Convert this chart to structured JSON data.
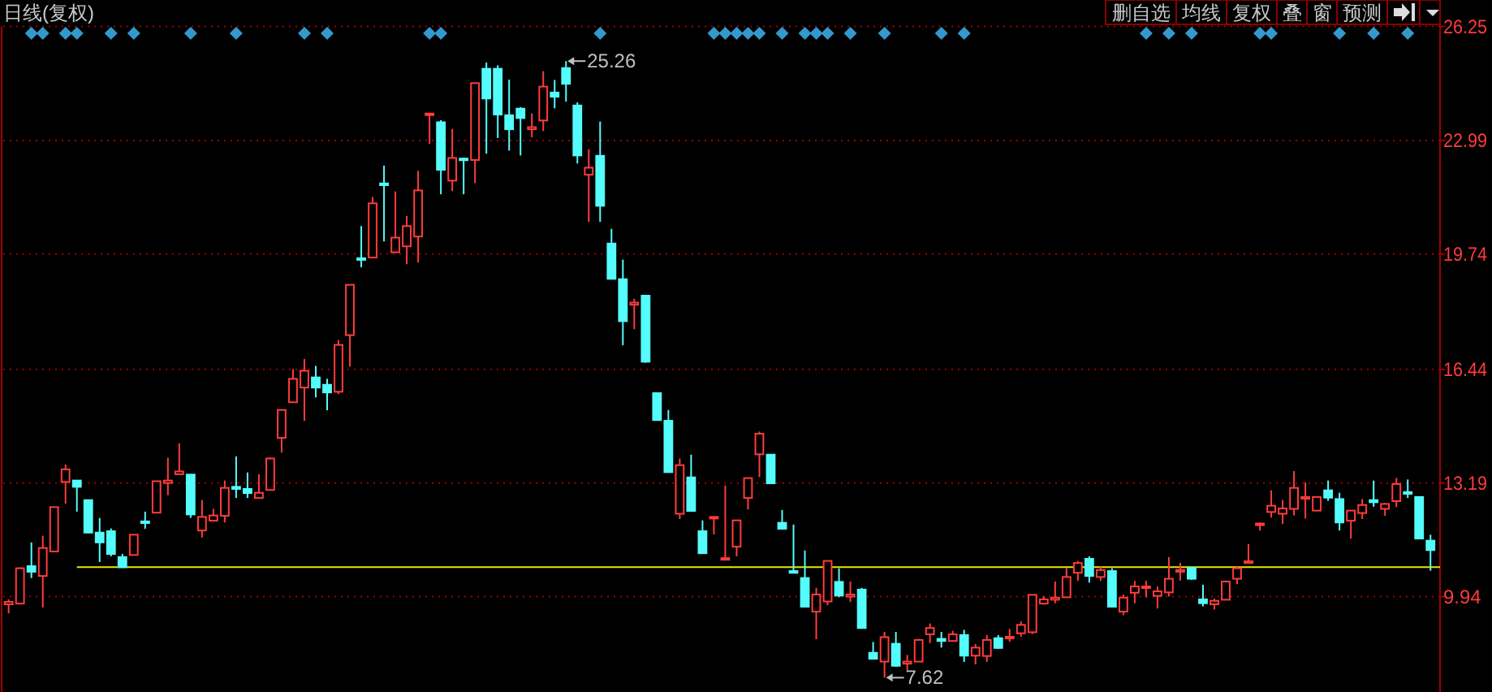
{
  "chart_data": {
    "type": "candlestick",
    "title": "日线(复权)",
    "annotations": [
      "删自选",
      "均线",
      "复权",
      "叠",
      "窗",
      "预测",
      "25.26",
      "7.62"
    ],
    "categories": [
      null,
      null,
      null,
      null,
      null,
      null,
      null,
      null,
      null,
      null,
      null,
      null,
      null,
      null,
      null,
      null,
      null,
      null,
      null,
      null,
      null,
      null,
      null,
      null,
      null,
      null,
      null,
      null,
      null,
      null,
      null,
      null,
      null,
      null,
      null,
      null,
      null,
      null,
      null,
      null,
      null,
      null,
      null,
      null,
      null,
      null,
      null,
      null,
      null,
      null,
      null,
      null,
      null,
      null,
      null,
      null,
      null,
      null,
      null,
      null,
      null,
      null,
      null,
      null,
      null,
      null,
      null,
      null,
      null,
      null,
      null,
      null,
      null,
      null,
      null,
      null,
      null,
      null,
      null,
      null,
      null,
      null,
      null,
      null,
      null,
      null,
      null,
      null,
      null,
      null,
      null,
      null,
      null,
      null,
      null,
      null,
      null,
      null,
      null,
      null,
      null,
      null,
      null,
      null,
      null,
      null,
      null,
      null,
      null,
      null,
      null,
      null,
      null,
      null,
      null,
      null,
      null,
      null,
      null,
      null,
      null,
      null,
      null,
      null,
      null,
      null
    ],
    "ohlc": [
      [
        9.72,
        9.86,
        9.46,
        9.79
      ],
      [
        9.74,
        10.78,
        9.72,
        10.75
      ],
      [
        10.81,
        11.49,
        10.47,
        10.65
      ],
      [
        10.53,
        11.68,
        9.63,
        11.33
      ],
      [
        11.23,
        12.5,
        11.23,
        12.5
      ],
      [
        13.22,
        13.72,
        12.6,
        13.58
      ],
      [
        13.26,
        13.26,
        12.37,
        13.08
      ],
      [
        12.7,
        12.7,
        11.77,
        11.77
      ],
      [
        11.77,
        12.19,
        10.93,
        11.49
      ],
      [
        11.81,
        11.89,
        11.09,
        11.16
      ],
      [
        11.07,
        11.16,
        10.78,
        10.78
      ],
      [
        11.13,
        11.71,
        11.13,
        11.71
      ],
      [
        12.09,
        12.37,
        11.88,
        12.05
      ],
      [
        12.34,
        13.24,
        12.34,
        13.24
      ],
      [
        13.19,
        13.91,
        12.84,
        13.26
      ],
      [
        13.44,
        14.32,
        13.44,
        13.52
      ],
      [
        13.43,
        13.43,
        12.19,
        12.29
      ],
      [
        11.83,
        12.7,
        11.63,
        12.22
      ],
      [
        12.11,
        12.45,
        12.11,
        12.26
      ],
      [
        12.25,
        13.26,
        12.06,
        13.05
      ],
      [
        13.08,
        13.95,
        12.76,
        13.02
      ],
      [
        13.02,
        13.49,
        12.76,
        12.9
      ],
      [
        12.76,
        13.44,
        12.76,
        12.91
      ],
      [
        12.99,
        13.92,
        12.99,
        13.89
      ],
      [
        14.48,
        15.28,
        14.06,
        15.28
      ],
      [
        15.5,
        16.45,
        15.5,
        16.17
      ],
      [
        15.92,
        16.74,
        14.97,
        16.4
      ],
      [
        16.21,
        16.54,
        15.64,
        15.92
      ],
      [
        16.0,
        16.17,
        15.27,
        15.78
      ],
      [
        15.8,
        17.28,
        15.73,
        17.14
      ],
      [
        17.42,
        18.86,
        16.52,
        18.86
      ],
      [
        19.62,
        20.54,
        19.36,
        19.58
      ],
      [
        19.64,
        21.37,
        19.64,
        21.19
      ],
      [
        21.76,
        22.27,
        20.1,
        21.71
      ],
      [
        19.79,
        21.53,
        19.79,
        20.21
      ],
      [
        19.96,
        20.83,
        19.45,
        20.54
      ],
      [
        20.24,
        22.12,
        19.5,
        21.56
      ],
      [
        23.73,
        23.76,
        22.89,
        23.76
      ],
      [
        23.51,
        23.57,
        21.45,
        22.15
      ],
      [
        21.84,
        23.32,
        21.54,
        22.49
      ],
      [
        22.47,
        22.5,
        21.45,
        22.43
      ],
      [
        22.43,
        24.63,
        21.77,
        24.63
      ],
      [
        25.04,
        25.22,
        22.61,
        24.19
      ],
      [
        25.04,
        25.14,
        23.06,
        23.73
      ],
      [
        23.71,
        24.73,
        22.7,
        23.31
      ],
      [
        23.9,
        23.94,
        22.56,
        23.63
      ],
      [
        23.31,
        23.76,
        23.08,
        23.37
      ],
      [
        23.56,
        24.97,
        23.26,
        24.53
      ],
      [
        24.36,
        24.72,
        23.91,
        24.24
      ],
      [
        25.06,
        25.26,
        24.1,
        24.61
      ],
      [
        23.99,
        24.08,
        22.33,
        22.56
      ],
      [
        22.01,
        22.74,
        20.66,
        22.21
      ],
      [
        22.55,
        23.53,
        20.66,
        21.12
      ],
      [
        20.04,
        20.46,
        19.03,
        19.03
      ],
      [
        19.02,
        19.58,
        17.13,
        17.82
      ],
      [
        18.29,
        18.46,
        17.59,
        18.35
      ],
      [
        18.55,
        18.55,
        16.63,
        16.66
      ],
      [
        15.76,
        15.76,
        14.99,
        14.99
      ],
      [
        14.97,
        15.28,
        13.5,
        13.5
      ],
      [
        12.31,
        13.89,
        12.16,
        13.7
      ],
      [
        13.35,
        14.0,
        12.39,
        12.39
      ],
      [
        11.81,
        12.12,
        11.18,
        11.18
      ],
      [
        12.19,
        12.22,
        11.72,
        12.22
      ],
      [
        11.01,
        13.12,
        11.01,
        11.04
      ],
      [
        11.37,
        12.12,
        11.09,
        12.12
      ],
      [
        12.76,
        13.33,
        12.43,
        13.33
      ],
      [
        14.01,
        14.66,
        13.36,
        14.6
      ],
      [
        14.0,
        14.0,
        13.18,
        13.18
      ],
      [
        12.05,
        12.42,
        11.88,
        11.88
      ],
      [
        10.67,
        12.0,
        10.62,
        10.62
      ],
      [
        10.47,
        11.26,
        9.65,
        9.65
      ],
      [
        9.51,
        10.19,
        8.72,
        10.0
      ],
      [
        9.8,
        10.96,
        9.69,
        10.96
      ],
      [
        10.36,
        10.75,
        9.92,
        9.97
      ],
      [
        9.94,
        10.37,
        9.79,
        10.0
      ],
      [
        10.14,
        10.19,
        9.04,
        9.04
      ],
      [
        8.33,
        8.64,
        8.16,
        8.16
      ],
      [
        8.08,
        8.93,
        7.62,
        8.78
      ],
      [
        8.59,
        8.93,
        7.93,
        7.96
      ],
      [
        8.02,
        8.27,
        7.83,
        8.08
      ],
      [
        8.08,
        8.73,
        8.08,
        8.7
      ],
      [
        8.86,
        9.17,
        8.61,
        9.04
      ],
      [
        8.73,
        8.93,
        8.48,
        8.67
      ],
      [
        8.67,
        8.96,
        8.67,
        8.86
      ],
      [
        8.84,
        8.99,
        8.07,
        8.25
      ],
      [
        8.25,
        8.58,
        8.0,
        8.48
      ],
      [
        8.24,
        8.84,
        8.07,
        8.7
      ],
      [
        8.75,
        8.84,
        8.44,
        8.47
      ],
      [
        8.75,
        9.01,
        8.65,
        8.79
      ],
      [
        8.89,
        9.23,
        8.79,
        9.13
      ],
      [
        8.92,
        9.99,
        8.87,
        9.99
      ],
      [
        9.74,
        9.95,
        9.71,
        9.86
      ],
      [
        9.85,
        10.37,
        9.75,
        9.91
      ],
      [
        9.92,
        10.76,
        9.92,
        10.5
      ],
      [
        10.62,
        10.96,
        10.39,
        10.9
      ],
      [
        11.02,
        11.09,
        10.34,
        10.53
      ],
      [
        10.5,
        10.79,
        10.39,
        10.7
      ],
      [
        10.67,
        10.75,
        9.65,
        9.65
      ],
      [
        9.51,
        10.0,
        9.41,
        9.91
      ],
      [
        10.05,
        10.39,
        9.75,
        10.23
      ],
      [
        10.19,
        10.39,
        9.92,
        10.23
      ],
      [
        9.96,
        10.23,
        9.6,
        10.09
      ],
      [
        10.06,
        11.07,
        9.94,
        10.45
      ],
      [
        10.65,
        10.9,
        10.4,
        10.7
      ],
      [
        10.76,
        10.79,
        10.42,
        10.45
      ],
      [
        9.86,
        10.28,
        9.66,
        9.75
      ],
      [
        9.72,
        9.88,
        9.57,
        9.82
      ],
      [
        9.85,
        10.4,
        9.85,
        10.37
      ],
      [
        10.45,
        10.79,
        10.3,
        10.75
      ],
      [
        10.9,
        11.44,
        10.9,
        10.95
      ],
      [
        12.0,
        12.06,
        11.83,
        12.03
      ],
      [
        12.36,
        12.98,
        12.2,
        12.54
      ],
      [
        12.31,
        12.7,
        12.02,
        12.46
      ],
      [
        12.45,
        13.53,
        12.26,
        13.05
      ],
      [
        12.74,
        13.21,
        12.17,
        12.79
      ],
      [
        12.4,
        12.79,
        12.4,
        12.79
      ],
      [
        12.98,
        13.26,
        12.68,
        12.77
      ],
      [
        12.73,
        12.91,
        11.83,
        12.06
      ],
      [
        12.11,
        12.4,
        11.6,
        12.4
      ],
      [
        12.33,
        12.73,
        12.16,
        12.56
      ],
      [
        12.7,
        13.26,
        12.51,
        12.64
      ],
      [
        12.45,
        12.62,
        12.25,
        12.59
      ],
      [
        12.67,
        13.33,
        12.5,
        13.16
      ],
      [
        12.93,
        13.29,
        12.76,
        12.88
      ],
      [
        12.79,
        12.79,
        11.6,
        11.6
      ],
      [
        11.54,
        11.71,
        10.68,
        11.27
      ]
    ],
    "colors": [
      "#ff3c3c",
      "#ff3c3c",
      "#54fcfc",
      "#ff3c3c",
      "#ff3c3c",
      "#ff3c3c",
      "#54fcfc",
      "#54fcfc",
      "#54fcfc",
      "#54fcfc",
      "#54fcfc",
      "#ff3c3c",
      "#54fcfc",
      "#ff3c3c",
      "#ff3c3c",
      "#ff3c3c",
      "#54fcfc",
      "#ff3c3c",
      "#ff3c3c",
      "#ff3c3c",
      "#54fcfc",
      "#54fcfc",
      "#ff3c3c",
      "#ff3c3c",
      "#ff3c3c",
      "#ff3c3c",
      "#ff3c3c",
      "#54fcfc",
      "#54fcfc",
      "#ff3c3c",
      "#ff3c3c",
      "#54fcfc",
      "#ff3c3c",
      "#54fcfc",
      "#ff3c3c",
      "#ff3c3c",
      "#ff3c3c",
      "#ff3c3c",
      "#54fcfc",
      "#ff3c3c",
      "#54fcfc",
      "#ff3c3c",
      "#54fcfc",
      "#54fcfc",
      "#54fcfc",
      "#54fcfc",
      "#ff3c3c",
      "#ff3c3c",
      "#54fcfc",
      "#54fcfc",
      "#54fcfc",
      "#ff3c3c",
      "#54fcfc",
      "#54fcfc",
      "#54fcfc",
      "#ff3c3c",
      "#54fcfc",
      "#54fcfc",
      "#54fcfc",
      "#ff3c3c",
      "#54fcfc",
      "#54fcfc",
      "#ff3c3c",
      "#ff3c3c",
      "#ff3c3c",
      "#ff3c3c",
      "#ff3c3c",
      "#54fcfc",
      "#54fcfc",
      "#54fcfc",
      "#54fcfc",
      "#ff3c3c",
      "#ff3c3c",
      "#54fcfc",
      "#ff3c3c",
      "#54fcfc",
      "#54fcfc",
      "#ff3c3c",
      "#54fcfc",
      "#ff3c3c",
      "#ff3c3c",
      "#ff3c3c",
      "#54fcfc",
      "#ff3c3c",
      "#54fcfc",
      "#ff3c3c",
      "#ff3c3c",
      "#54fcfc",
      "#ff3c3c",
      "#ff3c3c",
      "#ff3c3c",
      "#ff3c3c",
      "#ff3c3c",
      "#ff3c3c",
      "#ff3c3c",
      "#54fcfc",
      "#ff3c3c",
      "#54fcfc",
      "#ff3c3c",
      "#ff3c3c",
      "#ff3c3c",
      "#ff3c3c",
      "#ff3c3c",
      "#ff3c3c",
      "#54fcfc",
      "#54fcfc",
      "#ff3c3c",
      "#ff3c3c",
      "#ff3c3c",
      "#ff3c3c",
      "#ff3c3c",
      "#ff3c3c",
      "#ff3c3c",
      "#ff3c3c",
      "#ff3c3c",
      "#ff3c3c",
      "#54fcfc",
      "#54fcfc",
      "#ff3c3c",
      "#ff3c3c",
      "#54fcfc",
      "#ff3c3c",
      "#ff3c3c",
      "#54fcfc",
      "#54fcfc",
      "#54fcfc"
    ],
    "ylim": [
      7.21,
      26.25
    ],
    "yticks": [
      9.94,
      13.19,
      16.44,
      19.74,
      22.99,
      26.25
    ],
    "tick_labels": "y",
    "grid": "y",
    "ref_lines": [
      {
        "axis": "y",
        "value": 10.78,
        "color": "#e8e800"
      }
    ]
  }
}
